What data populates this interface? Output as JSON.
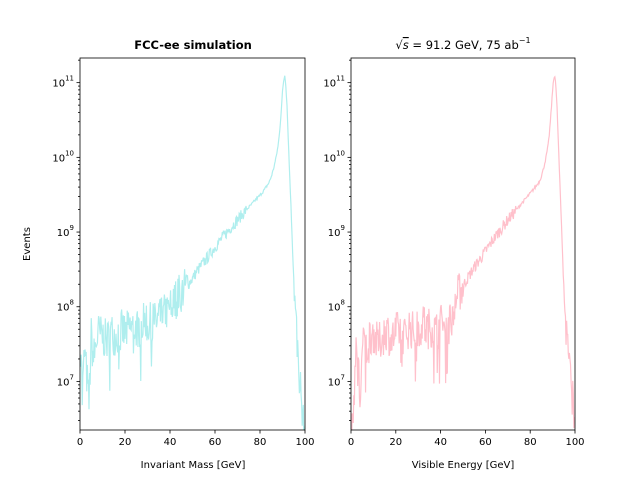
{
  "chart_data": [
    {
      "type": "line",
      "title": "FCC-ee simulation",
      "xlabel": "Invariant Mass [GeV]",
      "ylabel": "Events",
      "xlim": [
        0,
        100
      ],
      "ylim_log10": [
        6.35,
        11.33
      ],
      "yscale": "log",
      "color": "#afeeee",
      "xticks": [
        "0",
        "20",
        "40",
        "60",
        "80",
        "100"
      ],
      "yticks": [
        "10^7",
        "10^8",
        "10^9",
        "10^10",
        "10^11"
      ],
      "series": [
        {
          "x": [
            0.5,
            1,
            2,
            3,
            4,
            5,
            6,
            7,
            8,
            10,
            12,
            14,
            16,
            18,
            20,
            22,
            24,
            26,
            28,
            30,
            32,
            34,
            36,
            38,
            40,
            42,
            44,
            46,
            48,
            50,
            52,
            54,
            56,
            58,
            60,
            62,
            64,
            66,
            68,
            70,
            72,
            74,
            76,
            78,
            80,
            82,
            84,
            85,
            86,
            87,
            88,
            88.5,
            89,
            89.5,
            90,
            90.5,
            91,
            91.2,
            91.5,
            92,
            92.5,
            93,
            94,
            95,
            96,
            97,
            98,
            99,
            100
          ],
          "y": [
            30000000.0,
            6000000.0,
            25000000.0,
            12000000.0,
            5000000.0,
            40000000.0,
            20000000.0,
            30000000.0,
            45000000.0,
            40000000.0,
            35000000.0,
            45000000.0,
            40000000.0,
            50000000.0,
            45000000.0,
            50000000.0,
            55000000.0,
            50000000.0,
            60000000.0,
            55000000.0,
            65000000.0,
            60000000.0,
            70000000.0,
            85000000.0,
            100000000.0,
            120000000.0,
            150000000.0,
            170000000.0,
            200000000.0,
            240000000.0,
            300000000.0,
            360000000.0,
            430000000.0,
            520000000.0,
            630000000.0,
            750000000.0,
            900000000.0,
            1050000000.0,
            1250000000.0,
            1450000000.0,
            1700000000.0,
            2000000000.0,
            2300000000.0,
            2700000000.0,
            3100000000.0,
            3700000000.0,
            4600000000.0,
            5500000000.0,
            7000000000.0,
            9500000000.0,
            14000000000.0,
            19000000000.0,
            28000000000.0,
            45000000000.0,
            75000000000.0,
            105000000000.0,
            125000000000.0,
            115000000000.0,
            90000000000.0,
            50000000000.0,
            20000000000.0,
            8000000000.0,
            1500000000.0,
            250000000.0,
            60000000.0,
            20000000.0,
            8000000.0,
            3000000.0,
            2000000.0
          ]
        }
      ]
    },
    {
      "type": "line",
      "title": "√s = 91.2 GeV, 75 ab⁻¹",
      "title_parts": {
        "sqrt": "√",
        "s": "s",
        "rest": " = 91.2 GeV, 75 ab",
        "sup": "−1"
      },
      "xlabel": "Visible Energy [GeV]",
      "ylabel": "",
      "xlim": [
        0,
        100
      ],
      "ylim_log10": [
        6.35,
        11.33
      ],
      "yscale": "log",
      "color": "#ffc0cb",
      "xticks": [
        "0",
        "20",
        "40",
        "60",
        "80",
        "100"
      ],
      "yticks": [
        "10^7",
        "10^8",
        "10^9",
        "10^10",
        "10^11"
      ],
      "series": [
        {
          "x": [
            0.5,
            1,
            2,
            3,
            4,
            5,
            6,
            7,
            8,
            10,
            12,
            14,
            16,
            18,
            20,
            22,
            24,
            26,
            28,
            30,
            32,
            34,
            36,
            38,
            40,
            42,
            44,
            45,
            46,
            48,
            50,
            52,
            54,
            56,
            58,
            60,
            62,
            64,
            66,
            68,
            70,
            72,
            74,
            76,
            78,
            80,
            82,
            84,
            85,
            86,
            87,
            88,
            88.5,
            89,
            89.5,
            90,
            90.5,
            91,
            91.2,
            91.5,
            92,
            92.5,
            93,
            94,
            95,
            96,
            97,
            98,
            99,
            100
          ],
          "y": [
            2000000.0,
            4000000.0,
            20000000.0,
            30000000.0,
            5000000.0,
            25000000.0,
            35000000.0,
            25000000.0,
            40000000.0,
            45000000.0,
            30000000.0,
            40000000.0,
            50000000.0,
            35000000.0,
            45000000.0,
            50000000.0,
            40000000.0,
            55000000.0,
            45000000.0,
            50000000.0,
            60000000.0,
            50000000.0,
            55000000.0,
            45000000.0,
            60000000.0,
            55000000.0,
            65000000.0,
            70000000.0,
            120000000.0,
            150000000.0,
            190000000.0,
            240000000.0,
            300000000.0,
            370000000.0,
            450000000.0,
            550000000.0,
            680000000.0,
            830000000.0,
            1000000000.0,
            1200000000.0,
            1450000000.0,
            1700000000.0,
            2000000000.0,
            2400000000.0,
            2800000000.0,
            3300000000.0,
            3900000000.0,
            4700000000.0,
            5600000000.0,
            7200000000.0,
            9800000000.0,
            14500000000.0,
            20000000000.0,
            30000000000.0,
            48000000000.0,
            80000000000.0,
            110000000000.0,
            125000000000.0,
            115000000000.0,
            85000000000.0,
            45000000000.0,
            18000000000.0,
            7000000000.0,
            1200000000.0,
            200000000.0,
            50000000.0,
            30000000.0,
            10000000.0,
            6000000.0,
            3000000.0
          ]
        }
      ]
    }
  ]
}
